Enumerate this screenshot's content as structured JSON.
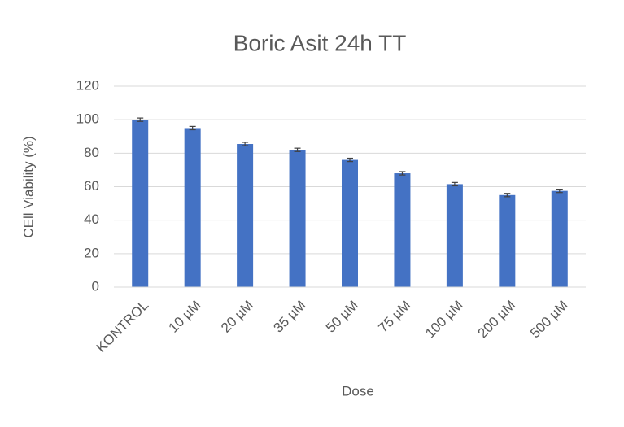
{
  "chart_data": {
    "type": "bar",
    "title": "Boric Asit 24h TT",
    "categories": [
      "KONTROL",
      "10 µM",
      "20 µM",
      "35 µM",
      "50 µM",
      "75 µM",
      "100 µM",
      "200 µM",
      "500 µM"
    ],
    "values": [
      100,
      95,
      85.5,
      82,
      76,
      68,
      61.5,
      55,
      57.5
    ],
    "errors": [
      1,
      1,
      1,
      1,
      1,
      1,
      1,
      1,
      1
    ],
    "color": "#4472c4",
    "x_label": "Dose",
    "y_label": "CEll Viability (%)",
    "ylim": [
      0,
      120
    ],
    "yticks": [
      0,
      20,
      40,
      60,
      80,
      100,
      120
    ],
    "grid": true
  }
}
